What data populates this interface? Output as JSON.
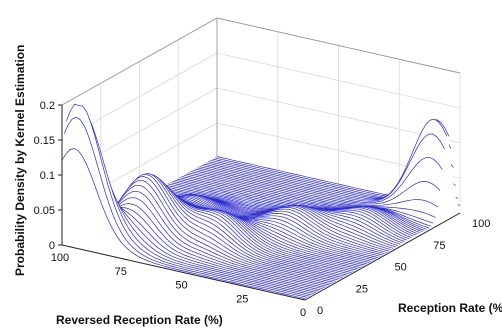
{
  "chart_data": {
    "type": "surface",
    "title": "",
    "xlabel": "Reception Rate (%)",
    "ylabel": "Reversed Reception Rate (%)",
    "zlabel": "Probability Density by Kernel Estimation",
    "xlim": [
      0,
      100
    ],
    "ylim": [
      0,
      100
    ],
    "zlim": [
      0,
      0.2
    ],
    "x_ticks": [
      "0",
      "25",
      "50",
      "75",
      "100"
    ],
    "y_ticks": [
      "100",
      "75",
      "50",
      "25",
      "0"
    ],
    "z_ticks": [
      "0",
      "0.05",
      "0.1",
      "0.15",
      "0.2"
    ],
    "grid": true,
    "colors": {
      "surface_line": "#2b2bcc",
      "surface_fill": "#ffffff",
      "background": "#ffffff"
    },
    "peaks": [
      {
        "x": 3,
        "y": 95,
        "z": 0.2
      },
      {
        "x": 92,
        "y": 5,
        "z": 0.14
      },
      {
        "x": 20,
        "y": 78,
        "z": 0.09
      },
      {
        "x": 30,
        "y": 55,
        "z": 0.04
      },
      {
        "x": 55,
        "y": 40,
        "z": 0.03
      },
      {
        "x": 45,
        "y": 75,
        "z": 0.03
      },
      {
        "x": 70,
        "y": 20,
        "z": 0.025
      }
    ]
  }
}
